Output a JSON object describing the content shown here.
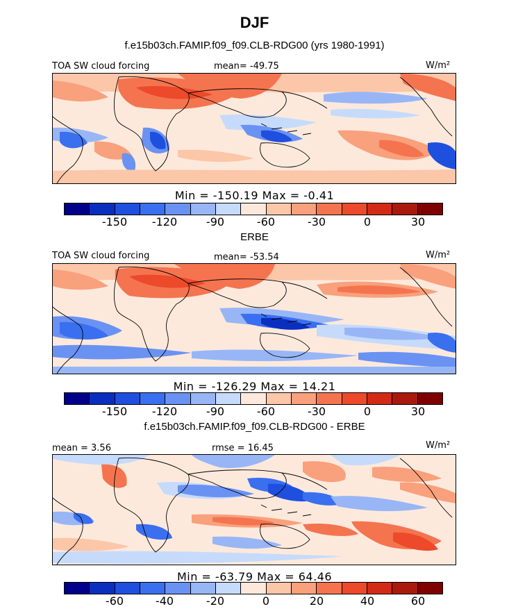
{
  "title": "DJF",
  "panels": [
    {
      "subtitle": "f.e15b03ch.FAMIP.f09_f09.CLB-RDG00 (yrs 1980-1991)",
      "left_label": "TOA SW cloud forcing",
      "center_label": "mean= -49.75",
      "right_label": "W/m²",
      "min_max": "Min = -150.19 Max =  -0.41",
      "tick_labels": [
        "-150",
        "-120",
        "-90",
        "-60",
        "-30",
        "0",
        "30"
      ]
    },
    {
      "subtitle": "ERBE",
      "left_label": "TOA SW cloud forcing",
      "center_label": "mean= -53.54",
      "right_label": "W/m²",
      "min_max": "Min = -126.29 Max =  14.21",
      "tick_labels": [
        "-150",
        "-120",
        "-90",
        "-60",
        "-30",
        "0",
        "30"
      ]
    },
    {
      "subtitle": "f.e15b03ch.FAMIP.f09_f09.CLB-RDG00 - ERBE",
      "left_label": "mean =  3.56",
      "center_label": "rmse =  16.45",
      "right_label": "W/m²",
      "min_max": "Min = -63.79 Max =  64.46",
      "tick_labels": [
        "-60",
        "-40",
        "-20",
        "0",
        "20",
        "40",
        "60"
      ]
    }
  ],
  "colorbar_colors": [
    "#00008b",
    "#0a2fbf",
    "#1f4fdf",
    "#3a6fef",
    "#6a92f2",
    "#98b6f6",
    "#c6dbfb",
    "#fde9dc",
    "#fcc6a9",
    "#f9a07c",
    "#f47450",
    "#ec4a2a",
    "#d22a16",
    "#aa1a0c",
    "#7f0000"
  ],
  "chart_data": [
    {
      "type": "heatmap",
      "title": "TOA SW cloud forcing",
      "units": "W/m²",
      "mean": -49.75,
      "min": -150.19,
      "max": -0.41,
      "colorbar_levels": [
        -150,
        -120,
        -90,
        -60,
        -30,
        0,
        30
      ]
    },
    {
      "type": "heatmap",
      "title": "TOA SW cloud forcing",
      "units": "W/m²",
      "mean": -53.54,
      "min": -126.29,
      "max": 14.21,
      "colorbar_levels": [
        -150,
        -120,
        -90,
        -60,
        -30,
        0,
        30
      ]
    },
    {
      "type": "heatmap",
      "title": "f.e15b03ch.FAMIP.f09_f09.CLB-RDG00 - ERBE",
      "units": "W/m²",
      "mean": 3.56,
      "rmse": 16.45,
      "min": -63.79,
      "max": 64.46,
      "colorbar_levels": [
        -60,
        -40,
        -20,
        0,
        20,
        40,
        60
      ]
    }
  ]
}
